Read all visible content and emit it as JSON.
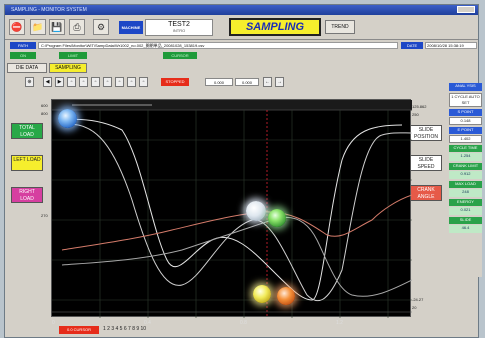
{
  "window": {
    "title_bar_text": "SAMPLING - MONITOR SYSTEM"
  },
  "toolbar": {
    "machine_label": "MACHINE",
    "test_title": "TEST2",
    "test_sub": "INTRO",
    "sampling_label": "SAMPLING",
    "trend_label": "TREND"
  },
  "path": {
    "label": "PATH",
    "value": "C:\\Program Files\\Monitor\\WIT\\SampData\\Wr1002_no.002_開閉単品_20081028_153819.csv",
    "date_label": "DATE",
    "date_value": "2008/10/28 15:38:19"
  },
  "status": {
    "left_label": "ON",
    "mid_label": "LIMIT",
    "right_label": "CURSOR"
  },
  "tabs": [
    {
      "label": "DIE DATA"
    },
    {
      "label": "SAMPLING"
    }
  ],
  "chart_toolbar": {
    "red_box": "STOPPED",
    "val1": "0.000",
    "val2": "0.000"
  },
  "left_buttons": [
    {
      "label": "TOTAL LOAD",
      "color": "#28a848"
    },
    {
      "label": "LEFT LOAD",
      "color": "#f6ee2d"
    },
    {
      "label": "RIGHT LOAD",
      "color": "#d63fa0"
    }
  ],
  "right_labels": {
    "slide_position": "SLIDE POSITION",
    "slide_speed": "SLIDE SPEED",
    "crank_angle": "CRANK ANGLE"
  },
  "y_labels_left": [
    "600",
    "800",
    "270"
  ],
  "y_labels_right": [
    "125.862",
    "250",
    "-24.27",
    "20"
  ],
  "x_axis": [
    "0",
    "0.4",
    "0.8",
    "1.2"
  ],
  "right_panel": {
    "header": "ANAL YSIS",
    "cycle": "1 CYCLE AUTO SET",
    "s_point": "S POINT",
    "s_point_val": "0.148",
    "e_point": "E POINT",
    "e_point_val": "1.402",
    "cycle_time": "CYCLE TIME",
    "cycle_time_val": "1.254",
    "crank_limit": "CRANK LIMIT",
    "crank_limit_val": "0.912",
    "max_load": "MAX LOAD",
    "max_load_val": "248",
    "energy": "ENERGY",
    "energy_val": "0.021",
    "slide": "SLIDE",
    "slide_val": "46.4"
  },
  "bottom": {
    "cursor_label": "0.0 CURSOR",
    "numbers": "1 2 3 4 5 6 7 8 9 10"
  },
  "curve_colors": {
    "curve_a": "#e4e4e4",
    "curve_b": "#cfcfcf",
    "curve_c": "#d47b6a",
    "curve_d": "#a7a7a7"
  }
}
